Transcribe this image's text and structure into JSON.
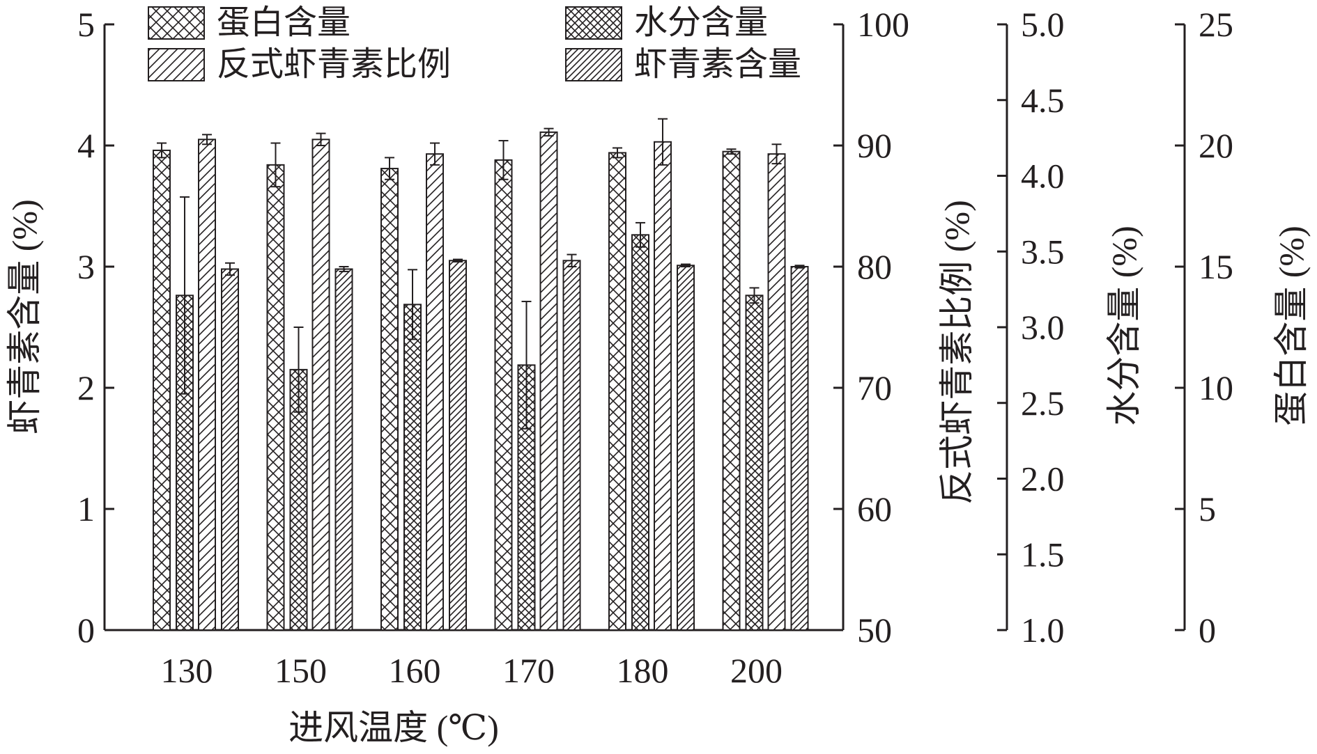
{
  "chart_data": {
    "type": "bar",
    "categories": [
      "130",
      "150",
      "160",
      "170",
      "180",
      "200"
    ],
    "xlabel": "进风温度 (℃)",
    "grid": false,
    "legend_position": "top",
    "legend": [
      {
        "label": "蛋白含量",
        "pattern": "crosshatch"
      },
      {
        "label": "水分含量",
        "pattern": "crosshatch-dense"
      },
      {
        "label": "反式虾青素比例",
        "pattern": "diagonal"
      },
      {
        "label": "虾青素含量",
        "pattern": "diagonal-dense"
      }
    ],
    "axes": {
      "left": {
        "label": "虾青素含量 (%)",
        "min": 0,
        "max": 5,
        "ticks": [
          "0",
          "1",
          "2",
          "3",
          "4",
          "5"
        ]
      },
      "right1": {
        "label": "反式虾青素比例 (%)",
        "min": 50,
        "max": 100,
        "ticks": [
          "50",
          "60",
          "70",
          "80",
          "90",
          "100"
        ]
      },
      "right2": {
        "label": "水分含量 (%)",
        "min": 1.0,
        "max": 5.0,
        "ticks": [
          "1.0",
          "1.5",
          "2.0",
          "2.5",
          "3.0",
          "3.5",
          "4.0",
          "4.5",
          "5.0"
        ]
      },
      "right3": {
        "label": "蛋白含量 (%)",
        "min": 0,
        "max": 25,
        "ticks": [
          "0",
          "5",
          "10",
          "15",
          "20",
          "25"
        ]
      }
    },
    "series": [
      {
        "name": "蛋白含量",
        "axis": "right3",
        "pattern": "crosshatch",
        "values": [
          19.8,
          19.2,
          19.05,
          19.4,
          19.7,
          19.75
        ],
        "errors": [
          0.3,
          0.9,
          0.45,
          0.8,
          0.2,
          0.1
        ]
      },
      {
        "name": "水分含量",
        "axis": "right2",
        "pattern": "crosshatch-dense",
        "values": [
          3.21,
          2.72,
          3.15,
          2.75,
          3.61,
          3.21
        ],
        "errors": [
          0.65,
          0.28,
          0.23,
          0.42,
          0.08,
          0.05
        ]
      },
      {
        "name": "反式虾青素比例",
        "axis": "right1",
        "pattern": "diagonal",
        "values": [
          90.5,
          90.5,
          89.3,
          91.1,
          90.3,
          89.3
        ],
        "errors": [
          0.4,
          0.5,
          0.9,
          0.3,
          1.9,
          0.8
        ]
      },
      {
        "name": "虾青素含量",
        "axis": "left",
        "pattern": "diagonal-dense",
        "values": [
          2.98,
          2.98,
          3.05,
          3.05,
          3.01,
          3.0
        ],
        "errors": [
          0.05,
          0.02,
          0.01,
          0.05,
          0.01,
          0.01
        ]
      }
    ]
  }
}
